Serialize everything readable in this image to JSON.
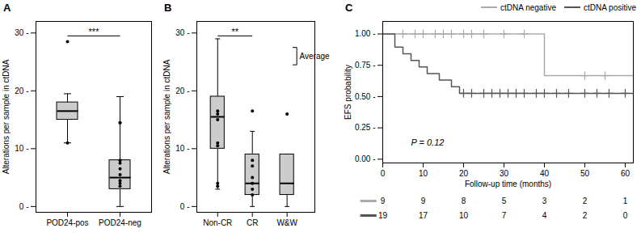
{
  "chart_data": [
    {
      "type": "box",
      "title": "A",
      "ylabel": "Alterations per sample in ctDNA",
      "categories": [
        "POD24-pos",
        "POD24-neg"
      ],
      "boxes": [
        {
          "median": 16.5,
          "q1": 15.0,
          "q3": 18.0,
          "whislo": 11.0,
          "whishi": 19.5,
          "fliers_above": [
            28.5
          ],
          "fliers_below": [
            11.0
          ]
        },
        {
          "median": 5.0,
          "q1": 3.0,
          "q3": 8.0,
          "whislo": 0.0,
          "whishi": 19.0,
          "fliers_above": [
            14.5,
            14.5
          ],
          "fliers_below": [
            8.0,
            7.5,
            6.5,
            5.5,
            4.5,
            4.0,
            3.5
          ]
        }
      ],
      "color": "#cccccc",
      "ylim": [
        -1,
        32
      ],
      "yticks": [
        {
          "value": 0,
          "label": "0 -"
        },
        {
          "value": 10,
          "label": "10 -"
        },
        {
          "value": 20,
          "label": "20 -"
        },
        {
          "value": 30,
          "label": "30 -"
        }
      ],
      "annotations": [
        {
          "text": "***",
          "from": "POD24-pos",
          "to": "POD24-neg",
          "y": 29.5
        }
      ]
    },
    {
      "type": "box",
      "title": "B",
      "ylabel": "Alterations per sample in ctDNA",
      "categories": [
        "Non-CR",
        "CR",
        "W&W"
      ],
      "boxes": [
        {
          "median": 15.5,
          "q1": 10.0,
          "q3": 19.0,
          "whislo": 3.0,
          "whishi": 29.0,
          "fliers_above": [],
          "fliers_below": [
            16.5,
            16.0,
            15.0,
            11.0,
            10.5,
            4.0,
            3.5
          ]
        },
        {
          "median": 4.0,
          "q1": 2.0,
          "q3": 9.0,
          "whislo": 0.0,
          "whishi": 13.0,
          "fliers_above": [
            16.5
          ],
          "fliers_below": [
            8.0,
            7.0,
            5.0,
            4.0,
            3.0,
            2.0
          ]
        },
        {
          "median": 4.0,
          "q1": 2.0,
          "q3": 9.0,
          "whislo": 0.0,
          "whishi": 9.0,
          "fliers_above": [
            16.0
          ],
          "fliers_below": []
        }
      ],
      "color": "#cccccc",
      "ylim": [
        -1,
        32
      ],
      "yticks": [
        {
          "value": 0,
          "label": "0 -"
        },
        {
          "value": 10,
          "label": "10 -"
        },
        {
          "value": 20,
          "label": "20 -"
        },
        {
          "value": 30,
          "label": "30 -"
        }
      ],
      "annotations": [
        {
          "text": "**",
          "from": "Non-CR",
          "to": "CR",
          "y": 29.5
        },
        {
          "text": "Average",
          "y_top": 27.5,
          "y_bot": 24.5
        }
      ]
    },
    {
      "type": "line",
      "title": "C",
      "xlabel": "Follow-up time (months)",
      "ylabel": "EFS probability",
      "xlim": [
        0,
        62
      ],
      "ylim": [
        -0.03,
        1.1
      ],
      "xticks": [
        0,
        10,
        20,
        30,
        40,
        50,
        60
      ],
      "yticks": [
        {
          "value": 0,
          "label": "0.00 -"
        },
        {
          "value": 0.25,
          "label": "0.25 -"
        },
        {
          "value": 0.5,
          "label": "0.50 -"
        },
        {
          "value": 0.75,
          "label": "0.75 -"
        },
        {
          "value": 1,
          "label": "1.00 -"
        }
      ],
      "legend": "upper right",
      "series": [
        {
          "name": "ctDNA negative",
          "color": "#aaaaaa",
          "line_style": "step",
          "marker": "plus",
          "x": [
            0,
            40,
            40,
            62
          ],
          "values": [
            1.0,
            1.0,
            0.667,
            0.667
          ],
          "censor_x": [
            5,
            8,
            10,
            13,
            15,
            17,
            20,
            22,
            25,
            30,
            35,
            50,
            55
          ],
          "censor_y": [
            1.0,
            1.0,
            1.0,
            1.0,
            1.0,
            1.0,
            1.0,
            1.0,
            1.0,
            1.0,
            1.0,
            0.667,
            0.667
          ],
          "at_risk": [
            9,
            9,
            8,
            5,
            3,
            2,
            1
          ]
        },
        {
          "name": "ctDNA positive",
          "color": "#555555",
          "line_style": "step",
          "marker": "plus",
          "x": [
            0,
            3,
            3,
            5,
            5,
            7,
            7,
            9,
            9,
            11,
            11,
            14,
            14,
            17,
            17,
            19,
            19,
            62
          ],
          "values": [
            1.0,
            1.0,
            0.895,
            0.895,
            0.842,
            0.842,
            0.789,
            0.789,
            0.737,
            0.737,
            0.684,
            0.684,
            0.632,
            0.632,
            0.579,
            0.579,
            0.526,
            0.526
          ],
          "censor_x": [
            20,
            22,
            25,
            27,
            29,
            31,
            33,
            35,
            38,
            40,
            43,
            46,
            50,
            53,
            56,
            60
          ],
          "censor_y": [
            0.526,
            0.526,
            0.526,
            0.526,
            0.526,
            0.526,
            0.526,
            0.526,
            0.526,
            0.526,
            0.526,
            0.526,
            0.526,
            0.526,
            0.526,
            0.526
          ],
          "at_risk": [
            19,
            17,
            10,
            7,
            4,
            2,
            0
          ]
        }
      ],
      "at_risk_x": [
        0,
        10,
        20,
        30,
        40,
        50,
        60
      ],
      "annotations": [
        {
          "text": "P = 0.12",
          "x": 7,
          "y": 0.13
        }
      ]
    }
  ]
}
